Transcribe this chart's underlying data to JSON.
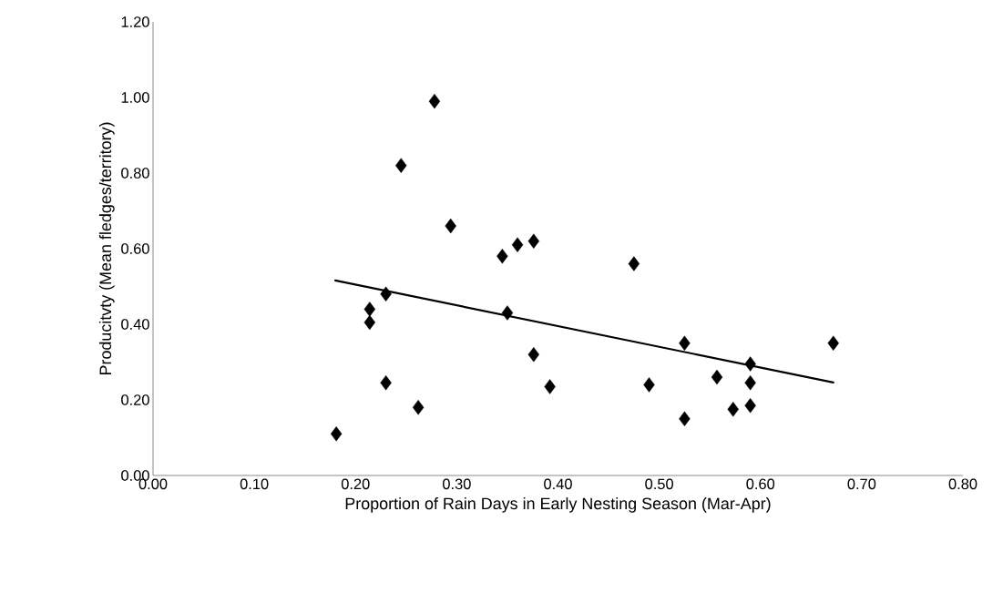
{
  "chart_data": {
    "type": "scatter",
    "xlabel": "Proportion of Rain Days in Early Nesting Season (Mar-Apr)",
    "ylabel": "Producitvty (Mean fledges/territory)",
    "xlim": [
      0,
      0.8
    ],
    "xticks": [
      {
        "value": 0,
        "label": "0.00"
      },
      {
        "value": 0.1,
        "label": "0.10"
      },
      {
        "value": 0.2,
        "label": "0.20"
      },
      {
        "value": 0.3,
        "label": "0.30"
      },
      {
        "value": 0.4,
        "label": "0.40"
      },
      {
        "value": 0.5,
        "label": "0.50"
      },
      {
        "value": 0.6,
        "label": "0.60"
      },
      {
        "value": 0.7,
        "label": "0.70"
      },
      {
        "value": 0.8,
        "label": "0.80"
      }
    ],
    "ylim": [
      0,
      1.2
    ],
    "yticks": [
      {
        "value": 0,
        "label": "0.00"
      },
      {
        "value": 0.2,
        "label": "0.20"
      },
      {
        "value": 0.4,
        "label": "0.40"
      },
      {
        "value": 0.6,
        "label": "0.60"
      },
      {
        "value": 0.8,
        "label": "0.80"
      },
      {
        "value": 1.0,
        "label": "1.00"
      },
      {
        "value": 1.2,
        "label": "1.20"
      }
    ],
    "series": [
      {
        "marker": "diamond",
        "color": "#000000",
        "x": [
          0.181,
          0.214,
          0.214,
          0.23,
          0.23,
          0.245,
          0.262,
          0.278,
          0.294,
          0.345,
          0.35,
          0.36,
          0.376,
          0.376,
          0.392,
          0.475,
          0.49,
          0.525,
          0.525,
          0.557,
          0.573,
          0.59,
          0.59,
          0.59,
          0.672
        ],
        "values": [
          0.11,
          0.44,
          0.405,
          0.48,
          0.245,
          0.82,
          0.18,
          0.99,
          0.66,
          0.58,
          0.43,
          0.61,
          0.62,
          0.32,
          0.235,
          0.56,
          0.24,
          0.35,
          0.15,
          0.26,
          0.175,
          0.295,
          0.245,
          0.185,
          0.35
        ]
      },
      {
        "type": "line",
        "color": "#000000",
        "x": [
          0.18,
          0.672
        ],
        "values": [
          0.516,
          0.246
        ]
      }
    ]
  }
}
